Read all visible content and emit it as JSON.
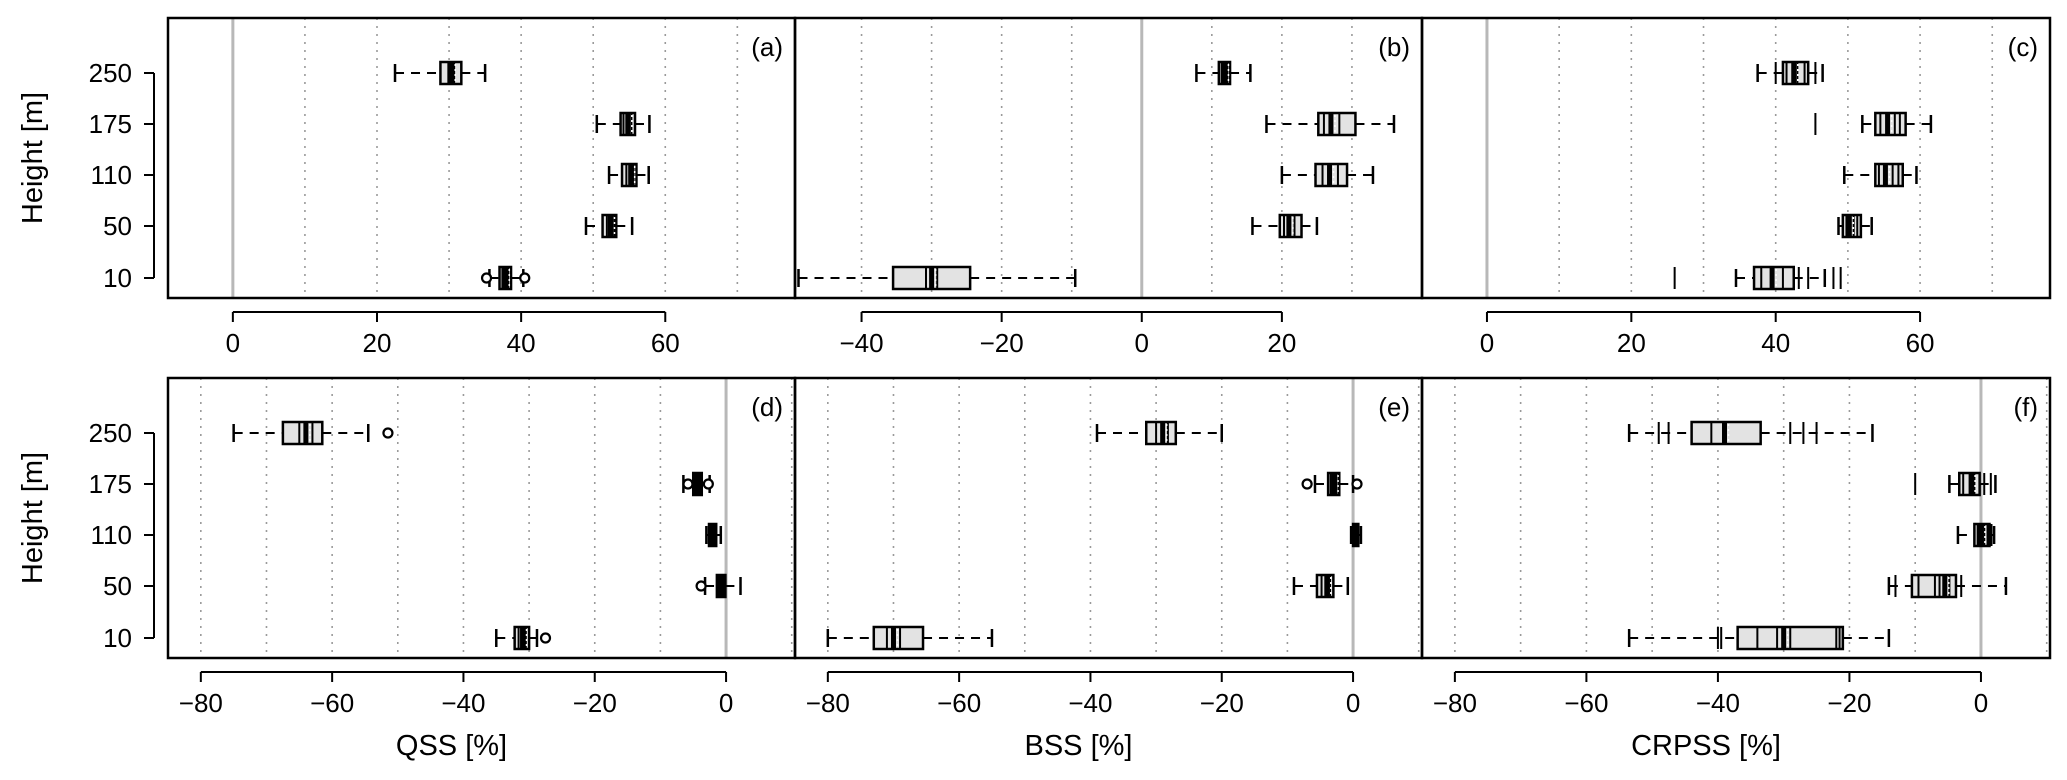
{
  "chart_data": {
    "type": "boxplot",
    "heights": [
      "250",
      "175",
      "110",
      "50",
      "10"
    ],
    "ylabel": "Height [m]",
    "panels": [
      {
        "tag": "(a)",
        "xlabel": "",
        "xlim": [
          -9,
          78
        ],
        "ticks": [
          0,
          20,
          40,
          60
        ],
        "grid": [
          10,
          20,
          30,
          40,
          50,
          60,
          70
        ],
        "zero_line": 0,
        "boxes": {
          "250": {
            "q1": 28.8,
            "median": 30.3,
            "q3": 31.7,
            "whiskers": [
              22.5,
              35.0
            ],
            "marks": [
              29.9,
              30.7
            ],
            "outliers": []
          },
          "175": {
            "q1": 53.8,
            "median": 54.8,
            "q3": 55.8,
            "whiskers": [
              50.5,
              57.8
            ],
            "marks": [
              54.2,
              55.3
            ],
            "outliers": []
          },
          "110": {
            "q1": 54.0,
            "median": 55.2,
            "q3": 56.0,
            "whiskers": [
              52.2,
              57.7
            ],
            "marks": [
              54.6,
              55.6
            ],
            "outliers": []
          },
          "50": {
            "q1": 51.3,
            "median": 52.4,
            "q3": 53.2,
            "whiskers": [
              49.0,
              55.4
            ],
            "marks": [
              51.9,
              52.9
            ],
            "outliers": []
          },
          "10": {
            "q1": 37.0,
            "median": 37.8,
            "q3": 38.6,
            "whiskers": [
              35.6,
              40.3
            ],
            "marks": [
              37.4,
              38.2
            ],
            "outliers": [
              35.2,
              40.5
            ]
          }
        }
      },
      {
        "tag": "(b)",
        "xlabel": "",
        "xlim": [
          -49.5,
          40
        ],
        "ticks": [
          -40,
          -20,
          0,
          20
        ],
        "grid": [
          -40,
          -30,
          -20,
          -10,
          10,
          20,
          30
        ],
        "zero_line": 0,
        "boxes": {
          "250": {
            "q1": 11.0,
            "median": 11.8,
            "q3": 12.6,
            "whiskers": [
              7.8,
              15.5
            ],
            "marks": [
              11.4,
              12.2
            ],
            "outliers": []
          },
          "175": {
            "q1": 25.2,
            "median": 27.0,
            "q3": 30.5,
            "whiskers": [
              17.8,
              36.0
            ],
            "marks": [
              26.0,
              28.2
            ],
            "outliers": []
          },
          "110": {
            "q1": 24.8,
            "median": 26.8,
            "q3": 29.3,
            "whiskers": [
              20.0,
              33.0
            ],
            "marks": [
              25.8,
              28.0
            ],
            "outliers": []
          },
          "50": {
            "q1": 19.7,
            "median": 21.0,
            "q3": 22.8,
            "whiskers": [
              15.8,
              25.0
            ],
            "marks": [
              20.3,
              21.8
            ],
            "outliers": []
          },
          "10": {
            "q1": -35.5,
            "median": -30.0,
            "q3": -24.5,
            "whiskers": [
              -49.0,
              -9.5
            ],
            "marks": [
              -30.8,
              -29.2
            ],
            "outliers": []
          }
        }
      },
      {
        "tag": "(c)",
        "xlabel": "",
        "xlim": [
          -9,
          78
        ],
        "ticks": [
          0,
          20,
          40,
          60
        ],
        "grid": [
          10,
          20,
          30,
          40,
          50,
          60,
          70
        ],
        "zero_line": 0,
        "boxes": {
          "250": {
            "q1": 41.0,
            "median": 42.5,
            "q3": 44.5,
            "whiskers": [
              37.5,
              46.5
            ],
            "marks": [
              40.0,
              41.5,
              43.0,
              44.0,
              45.5
            ],
            "outliers": []
          },
          "175": {
            "q1": 53.8,
            "median": 55.5,
            "q3": 58.0,
            "whiskers": [
              52.0,
              61.5
            ],
            "marks": [
              45.5,
              54.5,
              56.5,
              57.2
            ],
            "outliers": []
          },
          "110": {
            "q1": 53.8,
            "median": 55.2,
            "q3": 57.6,
            "whiskers": [
              49.5,
              59.5
            ],
            "marks": [
              54.3,
              56.2,
              57.0
            ],
            "outliers": []
          },
          "50": {
            "q1": 49.3,
            "median": 50.2,
            "q3": 51.8,
            "whiskers": [
              48.7,
              53.3
            ],
            "marks": [
              49.8,
              50.8,
              51.3
            ],
            "outliers": []
          },
          "10": {
            "q1": 37.0,
            "median": 39.5,
            "q3": 42.5,
            "whiskers": [
              34.5,
              46.8
            ],
            "marks": [
              26.0,
              38.0,
              41.0,
              43.2,
              44.5,
              48.0,
              49.0
            ],
            "outliers": []
          }
        }
      },
      {
        "tag": "(d)",
        "xlabel": "QSS [%]",
        "xlim": [
          -85,
          10.5
        ],
        "ticks": [
          -80,
          -60,
          -40,
          -20,
          0
        ],
        "grid": [
          -80,
          -70,
          -60,
          -50,
          -40,
          -30,
          -20,
          -10,
          10
        ],
        "zero_line": 0,
        "boxes": {
          "250": {
            "q1": -67.5,
            "median": -64.0,
            "q3": -61.5,
            "whiskers": [
              -75.0,
              -54.5
            ],
            "marks": [
              -65.0,
              -63.0
            ],
            "outliers": [
              -51.5
            ]
          },
          "175": {
            "q1": -5.0,
            "median": -4.3,
            "q3": -3.7,
            "whiskers": [
              -6.5,
              -2.5
            ],
            "marks": [
              -4.7,
              -4.0
            ],
            "outliers": [
              -5.8,
              -2.7
            ]
          },
          "110": {
            "q1": -2.6,
            "median": -2.2,
            "q3": -1.5,
            "whiskers": [
              -3.0,
              -0.8
            ],
            "marks": [
              -2.4,
              -1.9
            ],
            "outliers": []
          },
          "50": {
            "q1": -1.4,
            "median": -0.8,
            "q3": -0.1,
            "whiskers": [
              -3.2,
              2.2
            ],
            "marks": [
              -1.1,
              -0.4
            ],
            "outliers": [
              -3.8
            ]
          },
          "10": {
            "q1": -32.2,
            "median": -31.0,
            "q3": -30.0,
            "whiskers": [
              -35.0,
              -28.8
            ],
            "marks": [
              -31.6,
              -30.5
            ],
            "outliers": [
              -27.5
            ]
          }
        }
      },
      {
        "tag": "(e)",
        "xlabel": "BSS [%]",
        "xlim": [
          -85,
          10.5
        ],
        "ticks": [
          -80,
          -60,
          -40,
          -20,
          0
        ],
        "grid": [
          -80,
          -70,
          -60,
          -50,
          -40,
          -30,
          -20,
          -10,
          10
        ],
        "zero_line": 0,
        "boxes": {
          "250": {
            "q1": -31.5,
            "median": -29.0,
            "q3": -27.0,
            "whiskers": [
              -39.0,
              -20.0
            ],
            "marks": [
              -30.0,
              -28.2
            ],
            "outliers": []
          },
          "175": {
            "q1": -3.8,
            "median": -2.9,
            "q3": -2.1,
            "whiskers": [
              -5.8,
              0.0
            ],
            "marks": [
              -3.4,
              -2.5
            ],
            "outliers": [
              -7.0,
              0.6
            ]
          },
          "110": {
            "q1": 0.0,
            "median": 0.4,
            "q3": 0.8,
            "whiskers": [
              -0.3,
              1.2
            ],
            "marks": [
              0.2,
              0.6
            ],
            "outliers": []
          },
          "50": {
            "q1": -5.5,
            "median": -4.0,
            "q3": -3.0,
            "whiskers": [
              -9.0,
              -0.8
            ],
            "marks": [
              -4.8,
              -3.5
            ],
            "outliers": []
          },
          "10": {
            "q1": -73.0,
            "median": -70.0,
            "q3": -65.5,
            "whiskers": [
              -80.0,
              -55.0
            ],
            "marks": [
              -71.0,
              -69.0
            ],
            "outliers": []
          }
        }
      },
      {
        "tag": "(f)",
        "xlabel": "CRPSS [%]",
        "xlim": [
          -85,
          10.5
        ],
        "ticks": [
          -80,
          -60,
          -40,
          -20,
          0
        ],
        "grid": [
          -80,
          -70,
          -60,
          -50,
          -40,
          -30,
          -20,
          -10,
          10
        ],
        "zero_line": 0,
        "boxes": {
          "250": {
            "q1": -44.0,
            "median": -39.0,
            "q3": -33.5,
            "whiskers": [
              -53.5,
              -16.5
            ],
            "marks": [
              -49.0,
              -47.5,
              -41.0,
              -29.0,
              -27.0,
              -25.0
            ],
            "outliers": []
          },
          "175": {
            "q1": -3.3,
            "median": -1.5,
            "q3": -0.2,
            "whiskers": [
              -4.8,
              2.2
            ],
            "marks": [
              -10.0,
              -2.7,
              -1.0,
              0.5,
              1.5
            ],
            "outliers": []
          },
          "110": {
            "q1": -1.0,
            "median": 0.0,
            "q3": 1.3,
            "whiskers": [
              -3.5,
              2.0
            ],
            "marks": [
              -0.5,
              0.5,
              1.0,
              1.6
            ],
            "outliers": []
          },
          "50": {
            "q1": -10.5,
            "median": -5.5,
            "q3": -3.8,
            "whiskers": [
              -14.0,
              3.8
            ],
            "marks": [
              -13.0,
              -9.5,
              -7.0,
              -6.3,
              -4.8,
              -3.0
            ],
            "outliers": []
          },
          "10": {
            "q1": -37.0,
            "median": -30.0,
            "q3": -21.0,
            "whiskers": [
              -53.5,
              -14.0
            ],
            "marks": [
              -40.0,
              -39.5,
              -34.0,
              -31.0,
              -29.0,
              -22.0,
              -21.5
            ],
            "outliers": []
          }
        }
      }
    ]
  }
}
